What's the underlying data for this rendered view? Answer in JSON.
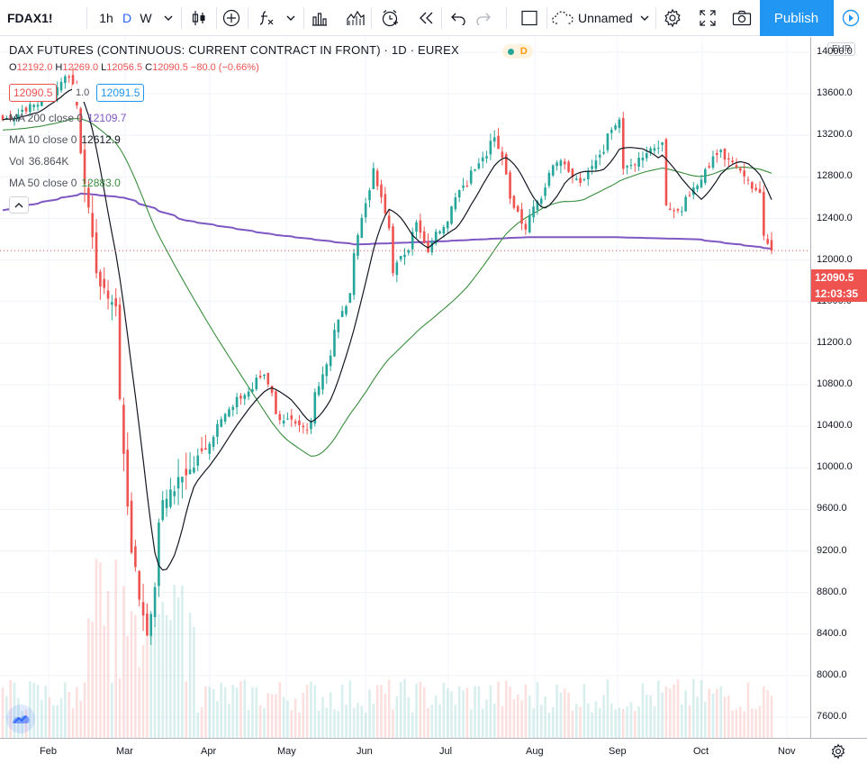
{
  "toolbar": {
    "symbol": "FDAX1!",
    "interval_1h": "1h",
    "interval_d": "D",
    "interval_w": "W",
    "layout_name": "Unnamed",
    "publish_label": "Publish",
    "icons": [
      "candles-icon",
      "add-compare-icon",
      "indicators-icon",
      "templates-icon",
      "bar-chart-icon",
      "alert-icon",
      "replay-icon",
      "undo-icon",
      "redo-icon",
      "fullscreen-layout-icon",
      "cloud-icon",
      "settings-icon",
      "fullscreen-icon",
      "camera-icon",
      "play-icon"
    ]
  },
  "legend": {
    "title": "DAX FUTURES (CONTINUOUS: CURRENT CONTRACT IN FRONT) · 1D · EUREX",
    "live_badge": "D",
    "ohlc": {
      "o_label": "O",
      "o": "12192.0",
      "h_label": "H",
      "h": "12269.0",
      "l_label": "L",
      "l": "12056.5",
      "c_label": "C",
      "c": "12090.5",
      "change": "−80.0 (−0.66%)"
    },
    "bid": "12090.5",
    "spread": "1.0",
    "ask": "12091.5",
    "indicators": [
      {
        "label": "MA 200 close 0",
        "value": "12109.7",
        "color": "#7e57c2"
      },
      {
        "label": "MA 10 close 0",
        "value": "12612.9",
        "color": "#131722"
      },
      {
        "label": "Vol",
        "value": "36.864K",
        "color": "#50535e"
      },
      {
        "label": "MA 50 close 0",
        "value": "12883.0",
        "color": "#388e3c"
      }
    ]
  },
  "price_scale": {
    "currency": "EUR",
    "ticks": [
      "14000.0",
      "13600.0",
      "13200.0",
      "12800.0",
      "12400.0",
      "12000.0",
      "11600.0",
      "11200.0",
      "10800.0",
      "10400.0",
      "10000.0",
      "9600.0",
      "9200.0",
      "8800.0",
      "8400.0",
      "8000.0",
      "7600.0"
    ],
    "last_price": "12090.5",
    "countdown": "12:03:35"
  },
  "time_scale": {
    "labels": [
      "Feb",
      "Mar",
      "Apr",
      "May",
      "Jun",
      "Jul",
      "Aug",
      "Sep",
      "Oct",
      "Nov"
    ]
  },
  "colors": {
    "up": "#26a69a",
    "down": "#ef5350",
    "ma200": "#7e57c2",
    "ma10": "#131722",
    "ma50": "#388e3c",
    "accent": "#2196f3"
  },
  "chart_data": {
    "type": "candlestick",
    "ylim": [
      7400,
      14500
    ],
    "x_start": "2020-01-27",
    "x_end": "2020-10-28",
    "anchors": [
      {
        "date": "2020-01-27",
        "close": 13350
      },
      {
        "date": "2020-02-07",
        "close": 13500
      },
      {
        "date": "2020-02-19",
        "close": 13780
      },
      {
        "date": "2020-02-24",
        "close": 13050
      },
      {
        "date": "2020-02-28",
        "close": 11900
      },
      {
        "date": "2020-03-06",
        "close": 11550
      },
      {
        "date": "2020-03-09",
        "close": 10650
      },
      {
        "date": "2020-03-12",
        "close": 9150
      },
      {
        "date": "2020-03-16",
        "close": 8750
      },
      {
        "date": "2020-03-18",
        "close": 8400
      },
      {
        "date": "2020-03-24",
        "close": 9700
      },
      {
        "date": "2020-04-06",
        "close": 10100
      },
      {
        "date": "2020-04-14",
        "close": 10500
      },
      {
        "date": "2020-04-20",
        "close": 10650
      },
      {
        "date": "2020-04-29",
        "close": 10900
      },
      {
        "date": "2020-05-04",
        "close": 10500
      },
      {
        "date": "2020-05-14",
        "close": 10350
      },
      {
        "date": "2020-05-22",
        "close": 11100
      },
      {
        "date": "2020-05-29",
        "close": 11650
      },
      {
        "date": "2020-06-05",
        "close": 12700
      },
      {
        "date": "2020-06-08",
        "close": 12850
      },
      {
        "date": "2020-06-15",
        "close": 11900
      },
      {
        "date": "2020-06-23",
        "close": 12350
      },
      {
        "date": "2020-06-26",
        "close": 12050
      },
      {
        "date": "2020-07-08",
        "close": 12650
      },
      {
        "date": "2020-07-21",
        "close": 13200
      },
      {
        "date": "2020-07-24",
        "close": 12850
      },
      {
        "date": "2020-07-31",
        "close": 12300
      },
      {
        "date": "2020-08-12",
        "close": 12950
      },
      {
        "date": "2020-08-21",
        "close": 12750
      },
      {
        "date": "2020-09-03",
        "close": 13350
      },
      {
        "date": "2020-09-04",
        "close": 12850
      },
      {
        "date": "2020-09-18",
        "close": 13100
      },
      {
        "date": "2020-09-21",
        "close": 12500
      },
      {
        "date": "2020-09-25",
        "close": 12450
      },
      {
        "date": "2020-10-09",
        "close": 13050
      },
      {
        "date": "2020-10-13",
        "close": 12950
      },
      {
        "date": "2020-10-20",
        "close": 12750
      },
      {
        "date": "2020-10-23",
        "close": 12650
      },
      {
        "date": "2020-10-26",
        "close": 12200
      },
      {
        "date": "2020-10-28",
        "close": 12090.5
      }
    ],
    "ma200_anchors": [
      {
        "date": "2020-01-27",
        "value": 12480
      },
      {
        "date": "2020-02-24",
        "value": 12640
      },
      {
        "date": "2020-03-10",
        "value": 12600
      },
      {
        "date": "2020-04-01",
        "value": 12380
      },
      {
        "date": "2020-05-01",
        "value": 12250
      },
      {
        "date": "2020-06-01",
        "value": 12150
      },
      {
        "date": "2020-07-01",
        "value": 12180
      },
      {
        "date": "2020-08-01",
        "value": 12220
      },
      {
        "date": "2020-09-01",
        "value": 12220
      },
      {
        "date": "2020-10-01",
        "value": 12200
      },
      {
        "date": "2020-10-28",
        "value": 12109.7
      }
    ],
    "volume_max_label": "36.864K"
  }
}
